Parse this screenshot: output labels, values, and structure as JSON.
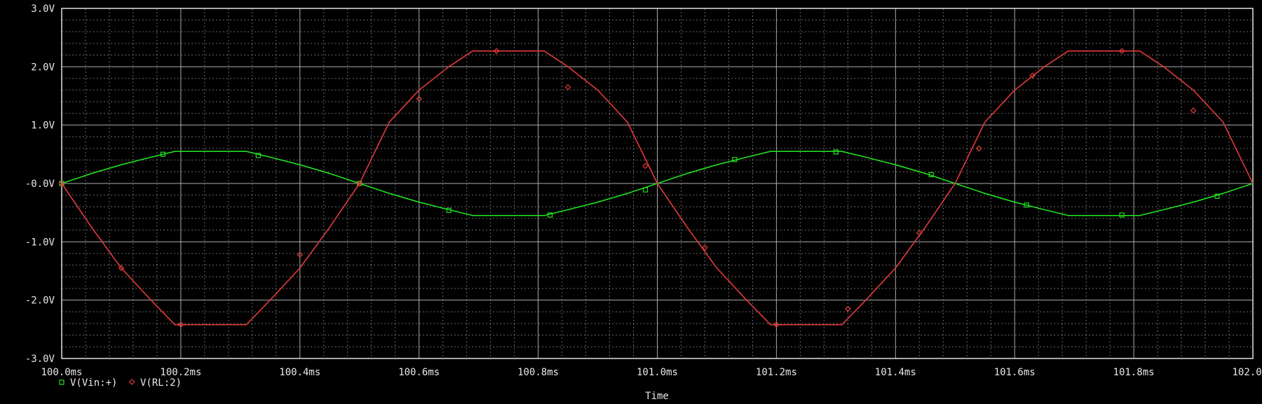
{
  "chart_data": {
    "type": "line",
    "xlabel": "Time",
    "ylabel": "",
    "x_unit": "ms",
    "xlim": [
      100.0,
      102.0
    ],
    "ylim": [
      -3.0,
      3.0
    ],
    "x_ticks": [
      100.0,
      100.2,
      100.4,
      100.6,
      100.8,
      101.0,
      101.2,
      101.4,
      101.6,
      101.8,
      102.0
    ],
    "x_tick_labels": [
      "100.0ms",
      "100.2ms",
      "100.4ms",
      "100.6ms",
      "100.8ms",
      "101.0ms",
      "101.2ms",
      "101.4ms",
      "101.6ms",
      "101.8ms",
      "102.0ms"
    ],
    "y_ticks": [
      3.0,
      2.0,
      1.0,
      0.0,
      -1.0,
      -2.0,
      -3.0
    ],
    "y_tick_labels": [
      "3.0V",
      "2.0V",
      "1.0V",
      "-0.0V",
      "-1.0V",
      "-2.0V",
      "-3.0V"
    ],
    "grid": true,
    "background": "#000000",
    "grid_color": "#bdbdbd",
    "legend_position": "bottom-left",
    "series": [
      {
        "name": "V(Vin:+)",
        "color": "#22dd22",
        "marker": "square",
        "x": [
          100.0,
          100.05,
          100.1,
          100.15,
          100.19,
          100.31,
          100.35,
          100.4,
          100.45,
          100.5,
          100.55,
          100.6,
          100.65,
          100.69,
          100.81,
          100.85,
          100.9,
          100.95,
          101.0,
          101.05,
          101.1,
          101.15,
          101.19,
          101.31,
          101.35,
          101.4,
          101.45,
          101.5,
          101.55,
          101.6,
          101.65,
          101.69,
          101.81,
          101.85,
          101.9,
          101.95,
          102.0
        ],
        "y": [
          0.0,
          0.17,
          0.32,
          0.45,
          0.55,
          0.55,
          0.45,
          0.32,
          0.17,
          0.0,
          -0.17,
          -0.32,
          -0.45,
          -0.55,
          -0.55,
          -0.45,
          -0.32,
          -0.17,
          0.0,
          0.17,
          0.32,
          0.45,
          0.55,
          0.55,
          0.45,
          0.32,
          0.17,
          0.0,
          -0.17,
          -0.32,
          -0.45,
          -0.55,
          -0.55,
          -0.45,
          -0.32,
          -0.17,
          0.0
        ],
        "markers_x": [
          100.0,
          100.17,
          100.33,
          100.5,
          100.65,
          100.82,
          100.98,
          101.13,
          101.3,
          101.46,
          101.62,
          101.78,
          101.94
        ],
        "markers_y": [
          0.0,
          0.5,
          0.48,
          0.0,
          -0.46,
          -0.54,
          -0.11,
          0.41,
          0.54,
          0.15,
          -0.37,
          -0.54,
          -0.22
        ]
      },
      {
        "name": "V(RL:2)",
        "color": "#e03a3a",
        "marker": "diamond",
        "x": [
          100.0,
          100.05,
          100.1,
          100.15,
          100.19,
          100.31,
          100.35,
          100.4,
          100.45,
          100.5,
          100.55,
          100.6,
          100.65,
          100.69,
          100.81,
          100.85,
          100.9,
          100.95,
          101.0,
          101.05,
          101.1,
          101.15,
          101.19,
          101.31,
          101.35,
          101.4,
          101.45,
          101.5,
          101.55,
          101.6,
          101.65,
          101.69,
          101.81,
          101.85,
          101.9,
          101.95,
          102.0
        ],
        "y": [
          0.0,
          -0.75,
          -1.45,
          -2.0,
          -2.42,
          -2.42,
          -2.0,
          -1.45,
          -0.75,
          0.0,
          1.05,
          1.6,
          2.0,
          2.27,
          2.27,
          2.0,
          1.6,
          1.05,
          0.0,
          -0.75,
          -1.45,
          -2.0,
          -2.42,
          -2.42,
          -2.0,
          -1.45,
          -0.75,
          0.0,
          1.05,
          1.6,
          2.0,
          2.27,
          2.27,
          2.0,
          1.6,
          1.05,
          0.0
        ],
        "markers_x": [
          100.0,
          100.1,
          100.2,
          100.4,
          100.5,
          100.6,
          100.73,
          100.85,
          100.98,
          101.08,
          101.2,
          101.32,
          101.44,
          101.54,
          101.63,
          101.78,
          101.9
        ],
        "markers_y": [
          0.0,
          -1.45,
          -2.42,
          -1.22,
          0.0,
          1.45,
          2.27,
          1.65,
          0.3,
          -1.1,
          -2.42,
          -2.15,
          -0.85,
          0.6,
          1.85,
          2.27,
          1.25
        ]
      }
    ]
  }
}
